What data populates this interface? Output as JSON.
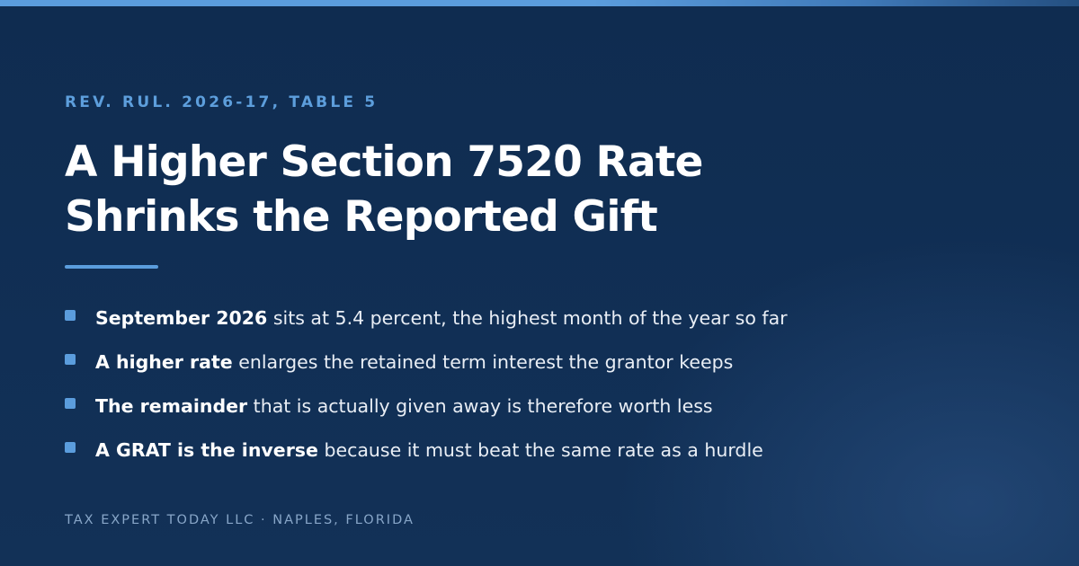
{
  "eyebrow": "REV. RUL. 2026-17, TABLE 5",
  "title": {
    "line1": "A Higher Section 7520 Rate",
    "line2": "Shrinks the Reported Gift"
  },
  "bullets": [
    {
      "lead": "September 2026",
      "text": " sits at 5.4 percent, the highest month of the year so far"
    },
    {
      "lead": "A higher rate",
      "text": " enlarges the retained term interest the grantor keeps"
    },
    {
      "lead": "The remainder",
      "text": " that is actually given away is therefore worth less"
    },
    {
      "lead": "A GRAT is the inverse",
      "text": " because it must beat the same rate as a hurdle"
    }
  ],
  "footer": "TAX EXPERT TODAY LLC · NAPLES, FLORIDA",
  "colors": {
    "background": "#0f2d52",
    "accent": "#5b9ddd",
    "title": "#ffffff",
    "body_text": "#e9eef5",
    "footer_text": "#88a6c8"
  }
}
